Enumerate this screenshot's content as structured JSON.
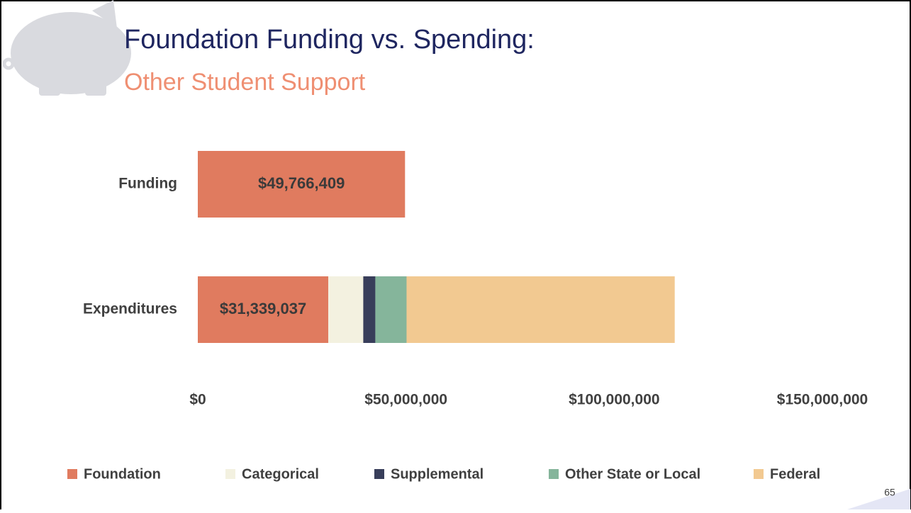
{
  "title": "Foundation Funding vs. Spending:",
  "subtitle": "Other Student Support",
  "page_number": "65",
  "chart_data": {
    "type": "stacked-bar-horizontal",
    "categories": [
      "Funding",
      "Expenditures"
    ],
    "series": [
      {
        "name": "Foundation",
        "color": "#e07b5f",
        "values": [
          49766409,
          31339037
        ],
        "value_labels": [
          "$49,766,409",
          "$31,339,037"
        ]
      },
      {
        "name": "Categorical",
        "color": "#f3f1e0",
        "values": [
          null,
          8400000
        ]
      },
      {
        "name": "Supplemental",
        "color": "#383e5a",
        "values": [
          null,
          2900000
        ]
      },
      {
        "name": "Other State or Local",
        "color": "#85b59b",
        "values": [
          null,
          7500000
        ]
      },
      {
        "name": "Federal",
        "color": "#f2c991",
        "values": [
          null,
          64400000
        ]
      }
    ],
    "xlim": [
      0,
      150000000
    ],
    "xticks": [
      {
        "value": 0,
        "label": "$0"
      },
      {
        "value": 50000000,
        "label": "$50,000,000"
      },
      {
        "value": 100000000,
        "label": "$100,000,000"
      },
      {
        "value": 150000000,
        "label": "$150,000,000"
      }
    ],
    "legend": "bottom"
  }
}
